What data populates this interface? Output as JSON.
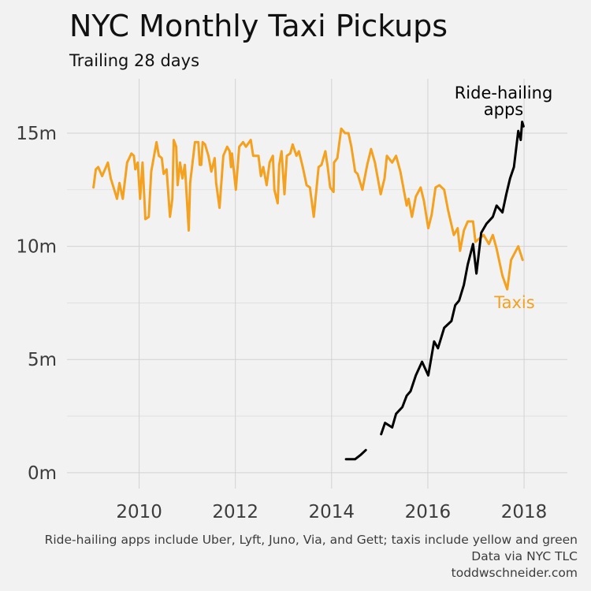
{
  "chart_data": {
    "type": "line",
    "title": "NYC Monthly Taxi Pickups",
    "subtitle": "Trailing 28 days",
    "xlabel": "",
    "ylabel": "",
    "xlim": [
      2008.5,
      2018.9
    ],
    "ylim": [
      -0.7,
      17.4
    ],
    "x_ticks": [
      2010,
      2012,
      2014,
      2016,
      2018
    ],
    "x_tick_labels": [
      "2010",
      "2012",
      "2014",
      "2016",
      "2018"
    ],
    "y_ticks": [
      0,
      5,
      10,
      15
    ],
    "y_tick_labels": [
      "0m",
      "5m",
      "10m",
      "15m"
    ],
    "y_minor_ticks": [
      2.5,
      7.5,
      12.5
    ],
    "grid": true,
    "legend": "none (direct labels)",
    "series": [
      {
        "name": "Taxis",
        "color": "#f4a11f",
        "points": [
          [
            2009.05,
            12.6
          ],
          [
            2009.1,
            13.4
          ],
          [
            2009.15,
            13.5
          ],
          [
            2009.23,
            13.1
          ],
          [
            2009.35,
            13.7
          ],
          [
            2009.41,
            13.0
          ],
          [
            2009.54,
            12.1
          ],
          [
            2009.59,
            12.8
          ],
          [
            2009.66,
            12.1
          ],
          [
            2009.75,
            13.7
          ],
          [
            2009.84,
            14.1
          ],
          [
            2009.89,
            14.0
          ],
          [
            2009.92,
            13.4
          ],
          [
            2009.97,
            13.7
          ],
          [
            2010.02,
            12.1
          ],
          [
            2010.07,
            13.7
          ],
          [
            2010.13,
            11.2
          ],
          [
            2010.2,
            11.3
          ],
          [
            2010.25,
            13.3
          ],
          [
            2010.36,
            14.6
          ],
          [
            2010.41,
            14.0
          ],
          [
            2010.47,
            13.9
          ],
          [
            2010.51,
            13.2
          ],
          [
            2010.57,
            13.4
          ],
          [
            2010.64,
            11.3
          ],
          [
            2010.69,
            12.1
          ],
          [
            2010.72,
            14.7
          ],
          [
            2010.77,
            14.4
          ],
          [
            2010.8,
            12.7
          ],
          [
            2010.85,
            13.7
          ],
          [
            2010.9,
            13.0
          ],
          [
            2010.95,
            13.6
          ],
          [
            2011.03,
            10.7
          ],
          [
            2011.06,
            12.8
          ],
          [
            2011.16,
            14.6
          ],
          [
            2011.23,
            14.6
          ],
          [
            2011.26,
            13.6
          ],
          [
            2011.29,
            13.6
          ],
          [
            2011.32,
            14.6
          ],
          [
            2011.37,
            14.5
          ],
          [
            2011.44,
            14.0
          ],
          [
            2011.5,
            13.3
          ],
          [
            2011.57,
            13.9
          ],
          [
            2011.6,
            12.8
          ],
          [
            2011.67,
            11.7
          ],
          [
            2011.75,
            14.0
          ],
          [
            2011.83,
            14.4
          ],
          [
            2011.88,
            14.2
          ],
          [
            2011.91,
            13.5
          ],
          [
            2011.93,
            14.1
          ],
          [
            2012.01,
            12.5
          ],
          [
            2012.08,
            14.4
          ],
          [
            2012.16,
            14.6
          ],
          [
            2012.22,
            14.4
          ],
          [
            2012.32,
            14.7
          ],
          [
            2012.37,
            14.0
          ],
          [
            2012.48,
            14.0
          ],
          [
            2012.53,
            13.1
          ],
          [
            2012.58,
            13.5
          ],
          [
            2012.65,
            12.7
          ],
          [
            2012.71,
            13.7
          ],
          [
            2012.78,
            14.0
          ],
          [
            2012.81,
            12.5
          ],
          [
            2012.88,
            11.9
          ],
          [
            2012.91,
            13.6
          ],
          [
            2012.96,
            14.2
          ],
          [
            2013.02,
            12.3
          ],
          [
            2013.07,
            14.0
          ],
          [
            2013.14,
            14.1
          ],
          [
            2013.19,
            14.5
          ],
          [
            2013.27,
            14.0
          ],
          [
            2013.32,
            14.2
          ],
          [
            2013.4,
            13.5
          ],
          [
            2013.48,
            12.7
          ],
          [
            2013.55,
            12.6
          ],
          [
            2013.63,
            11.3
          ],
          [
            2013.73,
            13.5
          ],
          [
            2013.79,
            13.6
          ],
          [
            2013.87,
            14.2
          ],
          [
            2013.92,
            13.5
          ],
          [
            2013.97,
            12.6
          ],
          [
            2014.04,
            12.4
          ],
          [
            2014.05,
            13.7
          ],
          [
            2014.12,
            13.9
          ],
          [
            2014.2,
            15.2
          ],
          [
            2014.28,
            15.0
          ],
          [
            2014.35,
            15.0
          ],
          [
            2014.41,
            14.4
          ],
          [
            2014.49,
            13.3
          ],
          [
            2014.54,
            13.2
          ],
          [
            2014.64,
            12.5
          ],
          [
            2014.74,
            13.6
          ],
          [
            2014.82,
            14.3
          ],
          [
            2014.9,
            13.7
          ],
          [
            2015.02,
            12.3
          ],
          [
            2015.1,
            13.0
          ],
          [
            2015.15,
            14.0
          ],
          [
            2015.26,
            13.7
          ],
          [
            2015.34,
            14.0
          ],
          [
            2015.43,
            13.3
          ],
          [
            2015.56,
            11.8
          ],
          [
            2015.6,
            12.1
          ],
          [
            2015.67,
            11.3
          ],
          [
            2015.75,
            12.2
          ],
          [
            2015.85,
            12.6
          ],
          [
            2015.92,
            12.0
          ],
          [
            2016.01,
            10.8
          ],
          [
            2016.08,
            11.4
          ],
          [
            2016.16,
            12.6
          ],
          [
            2016.24,
            12.7
          ],
          [
            2016.34,
            12.5
          ],
          [
            2016.42,
            11.6
          ],
          [
            2016.54,
            10.5
          ],
          [
            2016.62,
            10.8
          ],
          [
            2016.67,
            9.8
          ],
          [
            2016.75,
            10.7
          ],
          [
            2016.83,
            11.1
          ],
          [
            2016.94,
            11.1
          ],
          [
            2016.99,
            10.2
          ],
          [
            2017.16,
            10.5
          ],
          [
            2017.27,
            10.1
          ],
          [
            2017.35,
            10.5
          ],
          [
            2017.43,
            9.9
          ],
          [
            2017.55,
            8.7
          ],
          [
            2017.65,
            8.1
          ],
          [
            2017.73,
            9.4
          ],
          [
            2017.88,
            10.0
          ],
          [
            2017.97,
            9.4
          ]
        ]
      },
      {
        "name": "Ride-hailing apps",
        "color": "#000000",
        "segments": [
          [
            [
              2014.3,
              0.6
            ],
            [
              2014.49,
              0.6
            ],
            [
              2014.61,
              0.8
            ],
            [
              2014.71,
              1.0
            ]
          ],
          [
            [
              2015.03,
              1.7
            ],
            [
              2015.11,
              2.2
            ],
            [
              2015.26,
              2.0
            ],
            [
              2015.34,
              2.6
            ],
            [
              2015.47,
              2.9
            ],
            [
              2015.56,
              3.4
            ],
            [
              2015.64,
              3.6
            ],
            [
              2015.75,
              4.3
            ],
            [
              2015.88,
              4.9
            ],
            [
              2016.01,
              4.3
            ],
            [
              2016.13,
              5.8
            ],
            [
              2016.21,
              5.5
            ],
            [
              2016.34,
              6.4
            ],
            [
              2016.49,
              6.7
            ],
            [
              2016.57,
              7.4
            ],
            [
              2016.65,
              7.6
            ],
            [
              2016.75,
              8.3
            ],
            [
              2016.83,
              9.2
            ],
            [
              2016.94,
              10.1
            ],
            [
              2017.01,
              8.8
            ],
            [
              2017.11,
              10.6
            ],
            [
              2017.22,
              11.0
            ],
            [
              2017.35,
              11.3
            ],
            [
              2017.43,
              11.8
            ],
            [
              2017.55,
              11.5
            ],
            [
              2017.63,
              12.3
            ],
            [
              2017.71,
              13.0
            ],
            [
              2017.79,
              13.5
            ],
            [
              2017.88,
              15.1
            ],
            [
              2017.93,
              14.7
            ],
            [
              2017.96,
              15.5
            ],
            [
              2017.99,
              15.3
            ]
          ]
        ]
      }
    ],
    "annotations": {
      "ridehail_line1": "Ride-hailing",
      "ridehail_line2": "apps",
      "taxis": "Taxis"
    },
    "caption": {
      "line1": "Ride-hailing apps include Uber, Lyft, Juno, Via, and Gett; taxis include yellow and green",
      "line2": "Data via NYC TLC",
      "line3": "toddwschneider.com"
    }
  }
}
